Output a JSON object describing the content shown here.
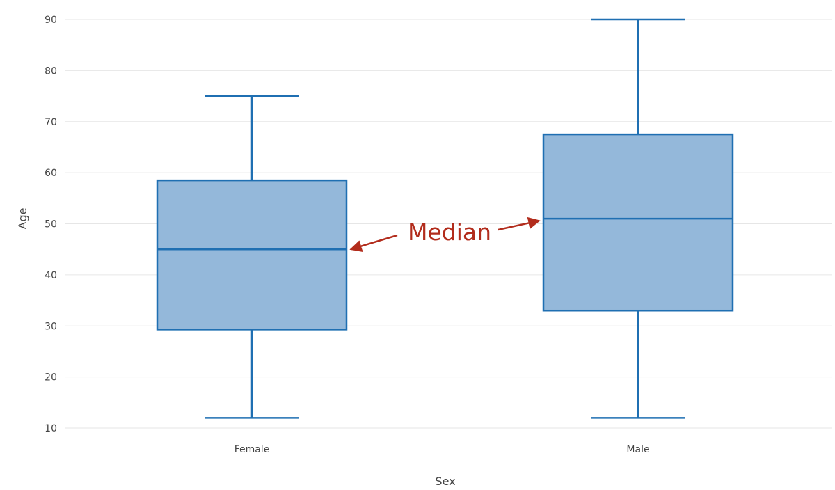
{
  "colors": {
    "box_fill": "#94b8da",
    "box_stroke": "#1f6fb2",
    "grid": "#e6e6e6",
    "annotation": "#b22c1c",
    "text": "#444444"
  },
  "chart_data": {
    "type": "box",
    "xlabel": "Sex",
    "ylabel": "Age",
    "ylim": [
      10,
      90
    ],
    "yticks": [
      10,
      20,
      30,
      40,
      50,
      60,
      70,
      80,
      90
    ],
    "grid": "horizontal",
    "categories": [
      "Female",
      "Male"
    ],
    "boxes": [
      {
        "category": "Female",
        "min": 12,
        "q1": 29.3,
        "median": 45,
        "q3": 58.5,
        "max": 75
      },
      {
        "category": "Male",
        "min": 12,
        "q1": 33,
        "median": 51,
        "q3": 67.5,
        "max": 90
      }
    ],
    "annotation": {
      "text": "Median",
      "points_to": "median lines"
    }
  }
}
